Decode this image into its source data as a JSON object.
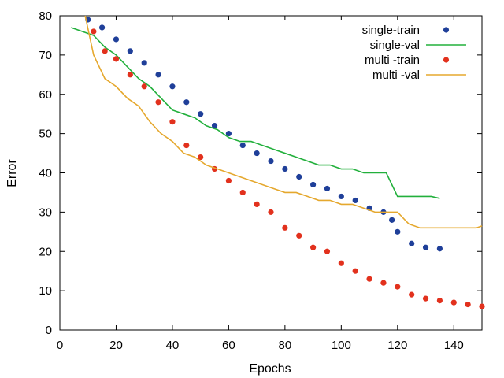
{
  "chart_data": {
    "type": "scatter",
    "title": "",
    "xlabel": "Epochs",
    "ylabel": "Error",
    "xlim": [
      0,
      150
    ],
    "ylim": [
      0,
      80
    ],
    "xticks": [
      0,
      20,
      40,
      60,
      80,
      100,
      120,
      140
    ],
    "yticks": [
      0,
      10,
      20,
      30,
      40,
      50,
      60,
      70,
      80
    ],
    "grid": false,
    "legend_position": "top-right",
    "series": [
      {
        "name": "single-train",
        "style": "points",
        "color": "#1f3f99",
        "x": [
          10,
          15,
          20,
          25,
          30,
          35,
          40,
          45,
          50,
          55,
          60,
          65,
          70,
          75,
          80,
          85,
          90,
          95,
          100,
          105,
          110,
          115,
          118,
          120,
          125,
          130,
          135
        ],
        "y": [
          79,
          77,
          74,
          71,
          68,
          65,
          62,
          58,
          55,
          52,
          50,
          47,
          45,
          43,
          41,
          39,
          37,
          36,
          34,
          33,
          31,
          30,
          28,
          25,
          22,
          21,
          20.7
        ]
      },
      {
        "name": "single-val",
        "style": "line",
        "color": "#22b03c",
        "x": [
          4,
          8,
          12,
          16,
          20,
          24,
          28,
          32,
          36,
          40,
          44,
          48,
          52,
          56,
          60,
          64,
          68,
          72,
          76,
          80,
          84,
          88,
          92,
          96,
          100,
          104,
          108,
          112,
          116,
          120,
          124,
          128,
          132,
          135
        ],
        "y": [
          77,
          76,
          75,
          72,
          70,
          67,
          64,
          62,
          59,
          56,
          55,
          54,
          52,
          51,
          49,
          48,
          48,
          47,
          46,
          45,
          44,
          43,
          42,
          42,
          41,
          41,
          40,
          40,
          40,
          34,
          34,
          34,
          34,
          33.5
        ]
      },
      {
        "name": "multi -train",
        "style": "points",
        "color": "#e2311d",
        "x": [
          12,
          16,
          20,
          25,
          30,
          35,
          40,
          45,
          50,
          55,
          60,
          65,
          70,
          75,
          80,
          85,
          90,
          95,
          100,
          105,
          110,
          115,
          120,
          125,
          130,
          135,
          140,
          145,
          150
        ],
        "y": [
          76,
          71,
          69,
          65,
          62,
          58,
          53,
          47,
          44,
          41,
          38,
          35,
          32,
          30,
          26,
          24,
          21,
          20,
          17,
          15,
          13,
          12,
          11,
          9,
          8,
          7.5,
          7,
          6.5,
          6
        ]
      },
      {
        "name": "multi -val",
        "style": "line",
        "color": "#e5a82e",
        "x": [
          9,
          12,
          16,
          20,
          24,
          28,
          32,
          36,
          40,
          44,
          48,
          52,
          56,
          60,
          64,
          68,
          72,
          76,
          80,
          84,
          88,
          92,
          96,
          100,
          104,
          108,
          112,
          116,
          120,
          124,
          128,
          132,
          136,
          140,
          144,
          148,
          150
        ],
        "y": [
          80,
          70,
          64,
          62,
          59,
          57,
          53,
          50,
          48,
          45,
          44,
          42,
          41,
          40,
          39,
          38,
          37,
          36,
          35,
          35,
          34,
          33,
          33,
          32,
          32,
          31,
          30,
          30,
          30,
          27,
          26,
          26,
          26,
          26,
          26,
          26,
          26.5
        ]
      }
    ]
  }
}
